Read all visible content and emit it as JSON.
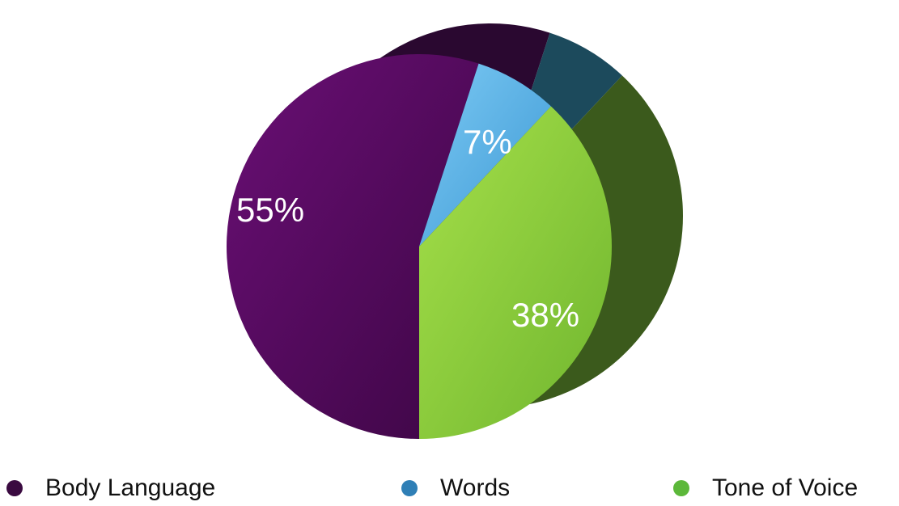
{
  "chart_data": {
    "type": "pie",
    "categories": [
      "Body Language",
      "Words",
      "Tone of Voice"
    ],
    "values": [
      55,
      7,
      38
    ],
    "labels": [
      "55%",
      "7%",
      "38%"
    ],
    "colors": [
      "#4a0a52",
      "#5ab4ea",
      "#8ccf3c"
    ],
    "side_colors": [
      "#2a0830",
      "#1c4a5c",
      "#3b5a1c"
    ],
    "style": "3d-tilted",
    "legend": {
      "position": "bottom",
      "items": [
        {
          "label": "Body Language",
          "color": "#3a0a40"
        },
        {
          "label": "Words",
          "color": "#2f7fb6"
        },
        {
          "label": "Tone of Voice",
          "color": "#5cb83a"
        }
      ]
    }
  }
}
